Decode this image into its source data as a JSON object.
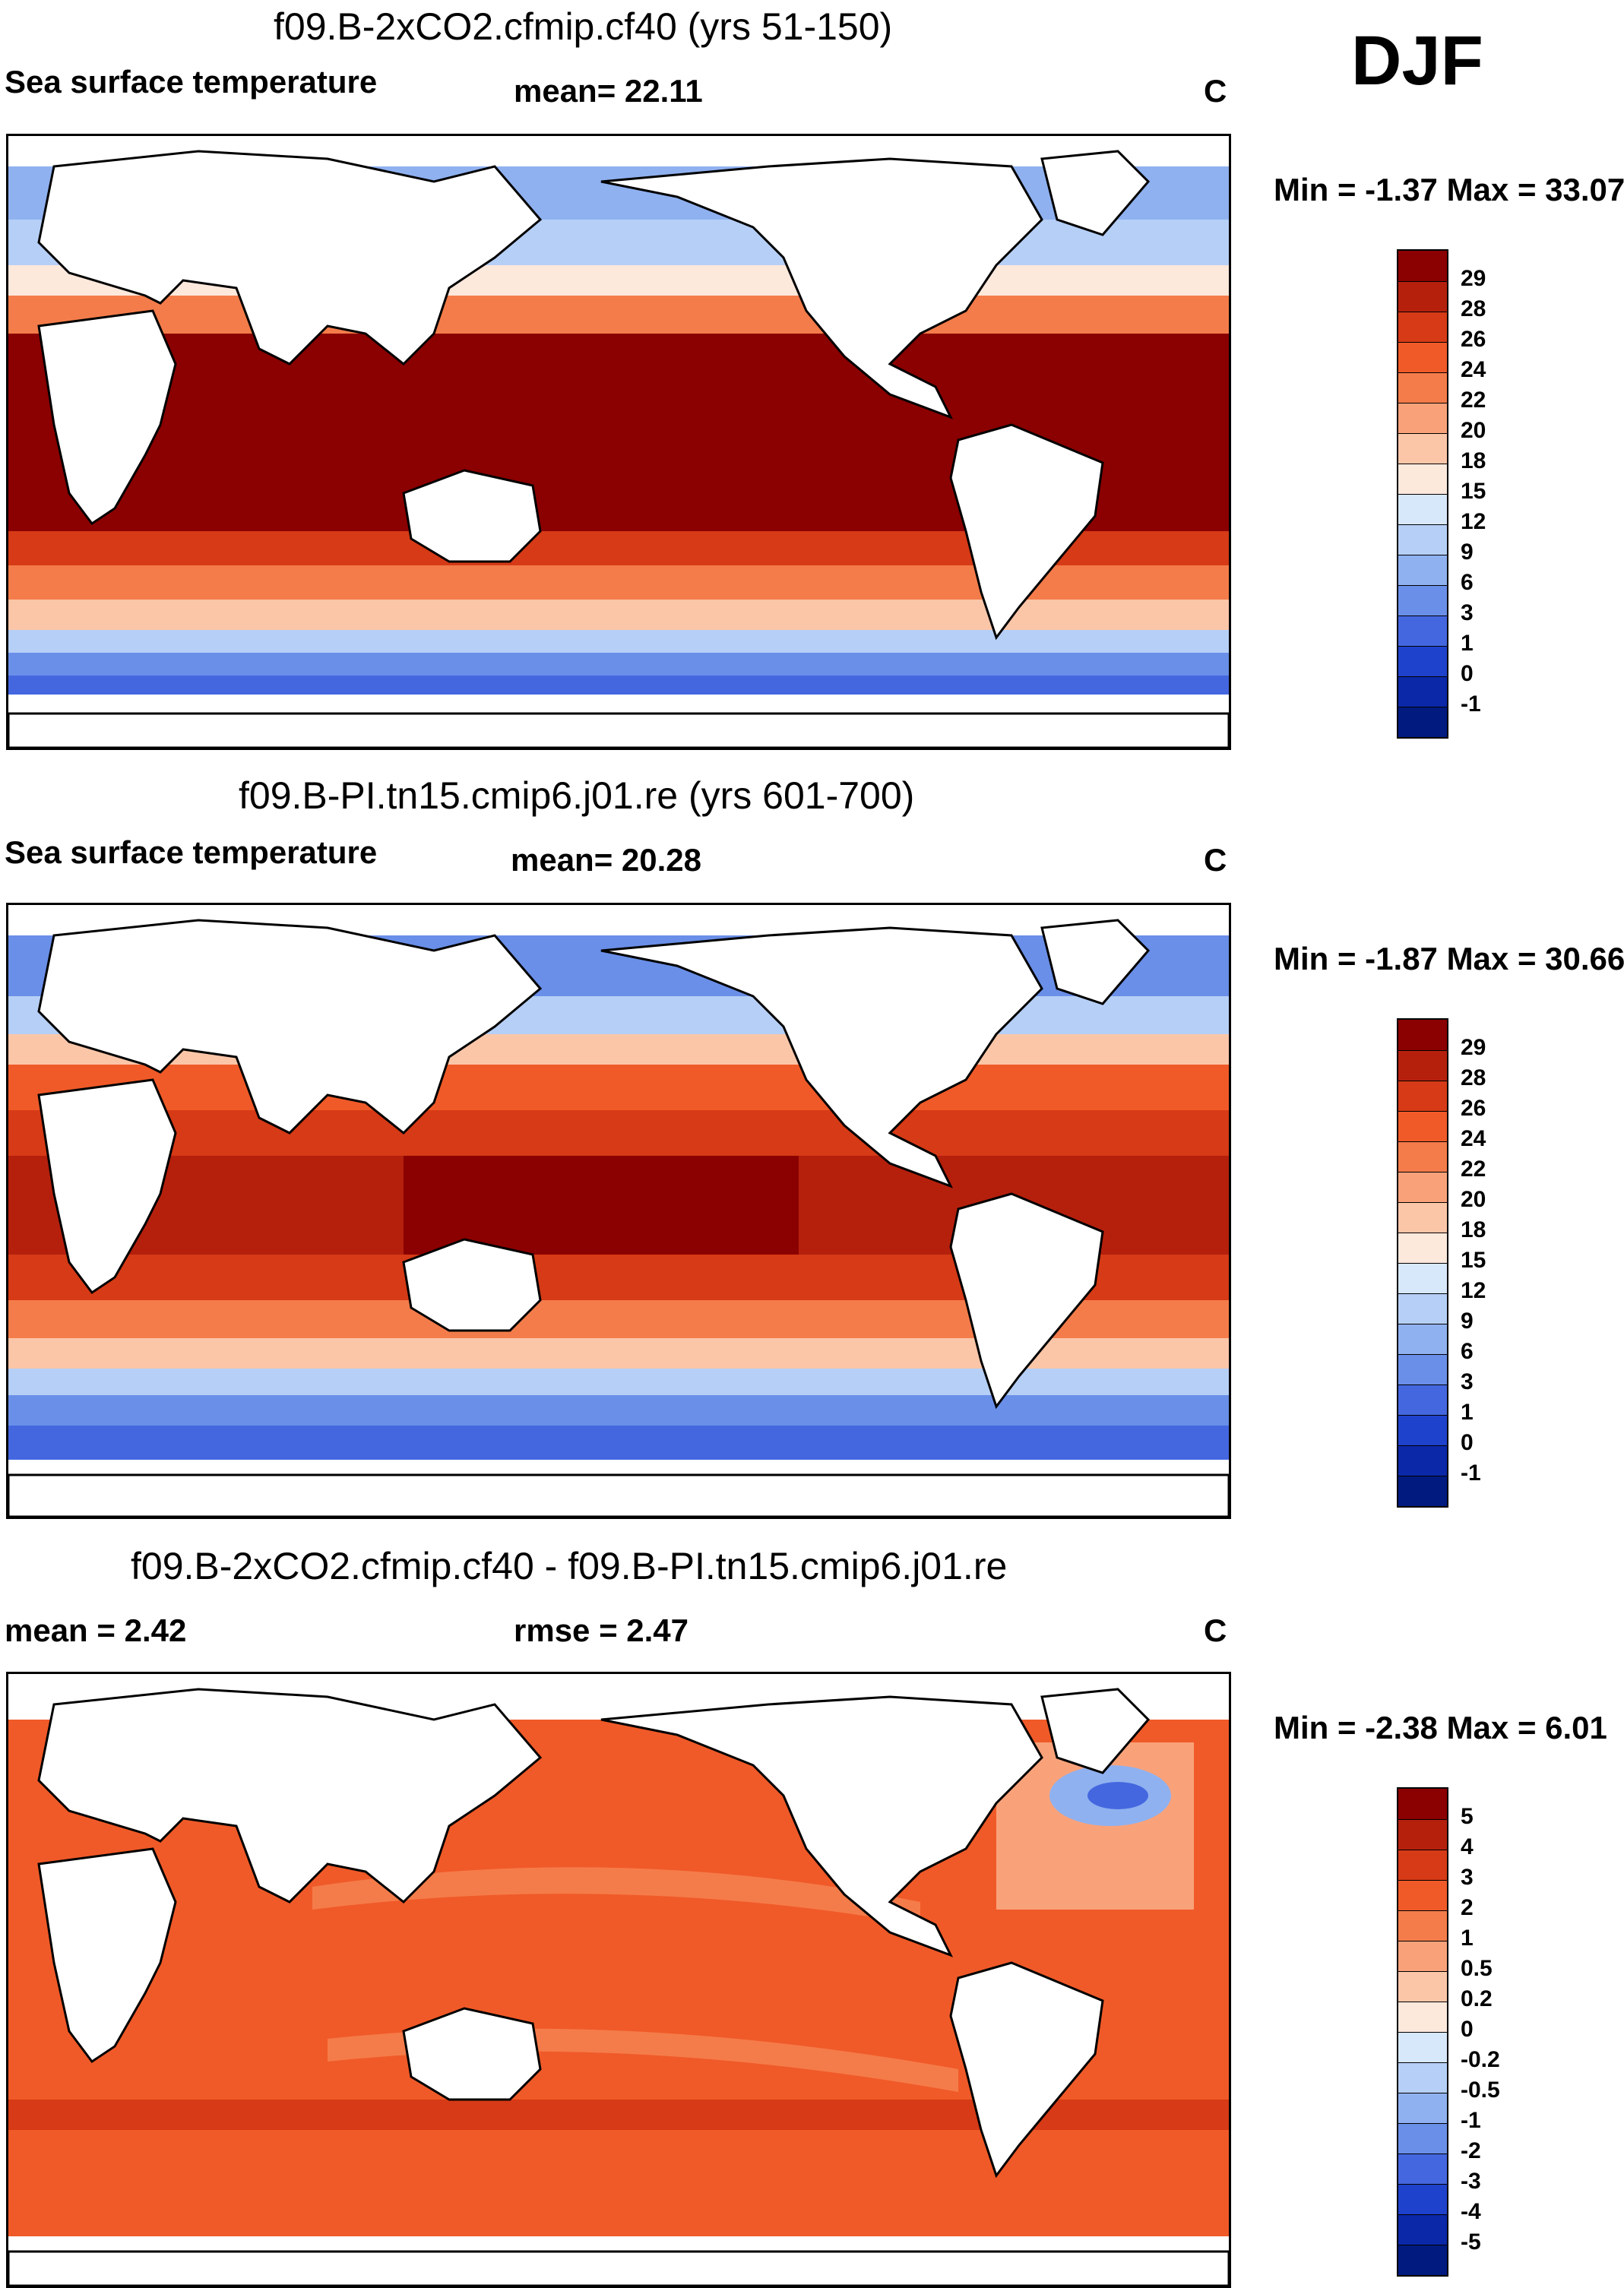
{
  "season": "DJF",
  "units": "C",
  "panels": [
    {
      "title": "f09.B-2xCO2.cfmip.cf40 (yrs 51-150)",
      "left_label": "Sea surface temperature",
      "center_label": "mean=  22.11",
      "units": "C",
      "minmax": "Min =  -1.37 Max =  33.07",
      "colorbar_ticks": [
        "29",
        "28",
        "26",
        "24",
        "22",
        "20",
        "18",
        "15",
        "12",
        "9",
        "6",
        "3",
        "1",
        "0",
        "-1"
      ],
      "colorbar_colors": [
        "#8b0000",
        "#b5200d",
        "#d63a16",
        "#f05a28",
        "#f47c4a",
        "#f9a27a",
        "#fbc6a8",
        "#fde8dc",
        "#d7e8fb",
        "#b6cff6",
        "#8fb1f0",
        "#6a8fe8",
        "#4467e0",
        "#1f42cc",
        "#0b28a8",
        "#001a80"
      ]
    },
    {
      "title": "f09.B-PI.tn15.cmip6.j01.re (yrs 601-700)",
      "left_label": "Sea surface temperature",
      "center_label": "mean=  20.28",
      "units": "C",
      "minmax": "Min =  -1.87 Max =  30.66",
      "colorbar_ticks": [
        "29",
        "28",
        "26",
        "24",
        "22",
        "20",
        "18",
        "15",
        "12",
        "9",
        "6",
        "3",
        "1",
        "0",
        "-1"
      ],
      "colorbar_colors": [
        "#8b0000",
        "#b5200d",
        "#d63a16",
        "#f05a28",
        "#f47c4a",
        "#f9a27a",
        "#fbc6a8",
        "#fde8dc",
        "#d7e8fb",
        "#b6cff6",
        "#8fb1f0",
        "#6a8fe8",
        "#4467e0",
        "#1f42cc",
        "#0b28a8",
        "#001a80"
      ]
    },
    {
      "title": "f09.B-2xCO2.cfmip.cf40 - f09.B-PI.tn15.cmip6.j01.re",
      "left_label": "mean =    2.42",
      "center_label": "rmse =    2.47",
      "units": "C",
      "minmax": "Min =  -2.38 Max =    6.01",
      "colorbar_ticks": [
        "5",
        "4",
        "3",
        "2",
        "1",
        "0.5",
        "0.2",
        "0",
        "-0.2",
        "-0.5",
        "-1",
        "-2",
        "-3",
        "-4",
        "-5"
      ],
      "colorbar_colors": [
        "#8b0000",
        "#b5200d",
        "#d63a16",
        "#f05a28",
        "#f47c4a",
        "#f9a27a",
        "#fbc6a8",
        "#fde8dc",
        "#d7e8fb",
        "#b6cff6",
        "#8fb1f0",
        "#6a8fe8",
        "#4467e0",
        "#1f42cc",
        "#0b28a8",
        "#001a80"
      ]
    }
  ]
}
